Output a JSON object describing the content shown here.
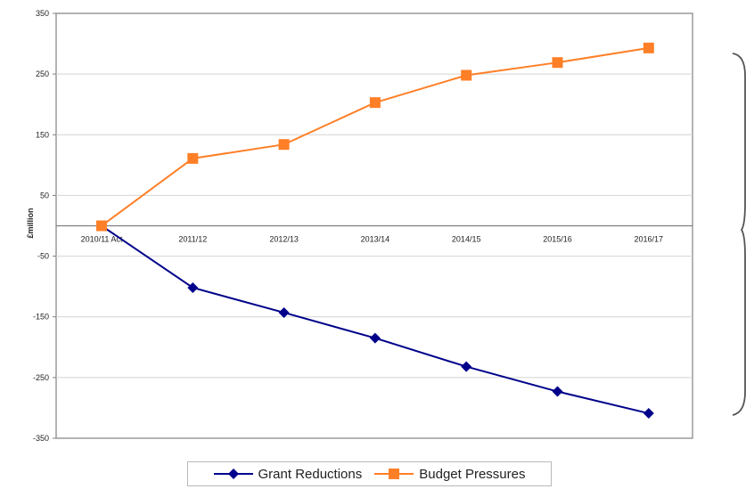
{
  "chart_data": {
    "type": "line",
    "categories": [
      "2010/11 Act",
      "2011/12",
      "2012/13",
      "2013/14",
      "2014/15",
      "2015/16",
      "2016/17"
    ],
    "series": [
      {
        "name": "Grant Reductions",
        "values": [
          0,
          -102,
          -143,
          -185,
          -232,
          -273,
          -309
        ],
        "color": "#00008b",
        "marker": "diamond"
      },
      {
        "name": "Budget Pressures",
        "values": [
          0,
          111,
          134,
          203,
          248,
          269,
          293
        ],
        "color": "#ff7f27",
        "marker": "square"
      }
    ],
    "ylabel": "£million",
    "ylim": [
      -350,
      350
    ],
    "yticks": [
      350,
      250,
      150,
      50,
      -50,
      -150,
      -250,
      -350
    ],
    "grid": true,
    "legend_position": "bottom",
    "colors": {
      "gridline": "#d4d4d4",
      "frame": "#9a9a9a",
      "axis": "#7f7f7f",
      "brace": "#555555"
    }
  }
}
